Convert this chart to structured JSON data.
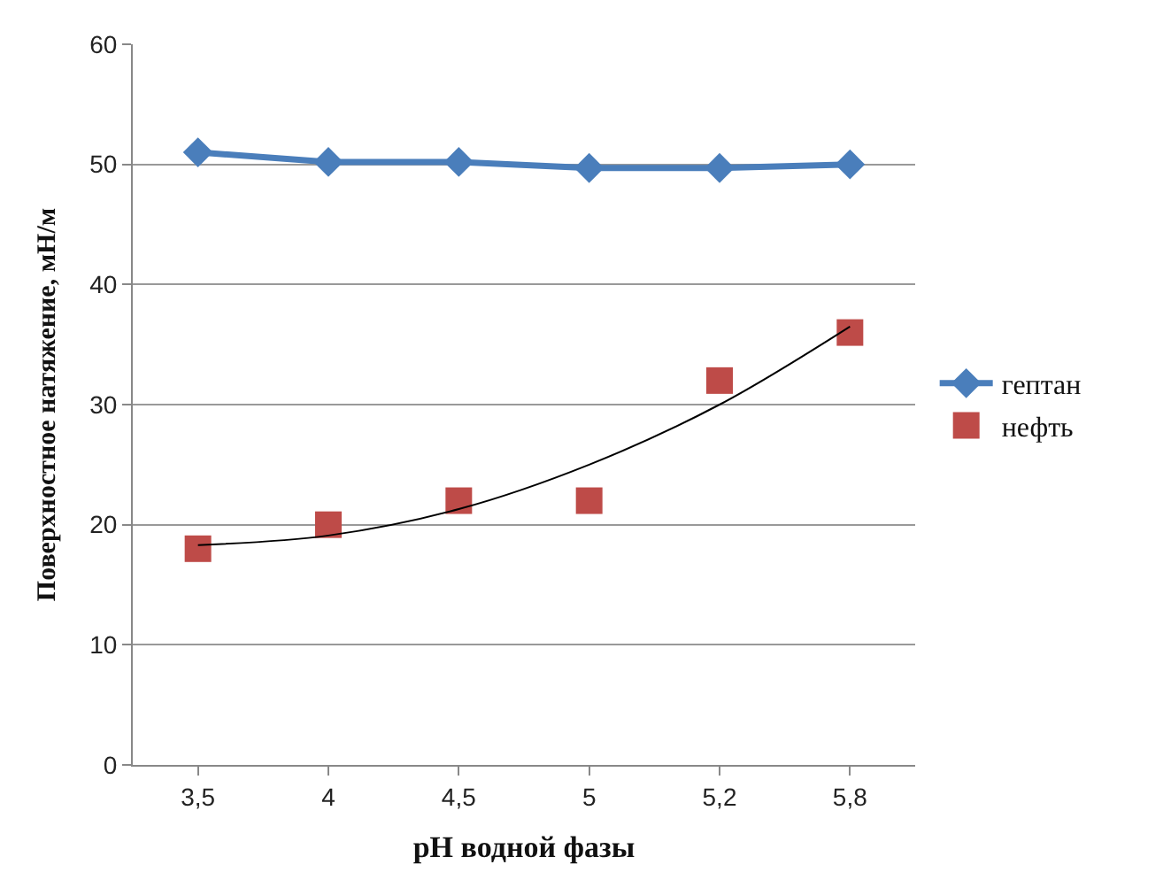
{
  "chart_data": {
    "type": "line",
    "xlabel": "pH водной фазы",
    "ylabel": "Поверхностное натяжение, мН/м",
    "categories": [
      "3,5",
      "4",
      "4,5",
      "5",
      "5,2",
      "5,8"
    ],
    "ylim": [
      0,
      60
    ],
    "yticks": [
      0,
      10,
      20,
      30,
      40,
      50,
      60
    ],
    "grid": "y",
    "legend": "right",
    "series": [
      {
        "name": "гептан",
        "color": "#4a7ebb",
        "marker": "diamond",
        "values": [
          51,
          50.2,
          50.2,
          49.7,
          49.7,
          50
        ]
      },
      {
        "name": "нефть",
        "type": "scatter",
        "color": "#be4b48",
        "marker": "square",
        "values": [
          18,
          20,
          22,
          22,
          32,
          36
        ]
      },
      {
        "type": "line",
        "color": "#000000",
        "marker": "none",
        "values": [
          18.3,
          19.1,
          21.3,
          25,
          30,
          36.5
        ]
      }
    ]
  }
}
